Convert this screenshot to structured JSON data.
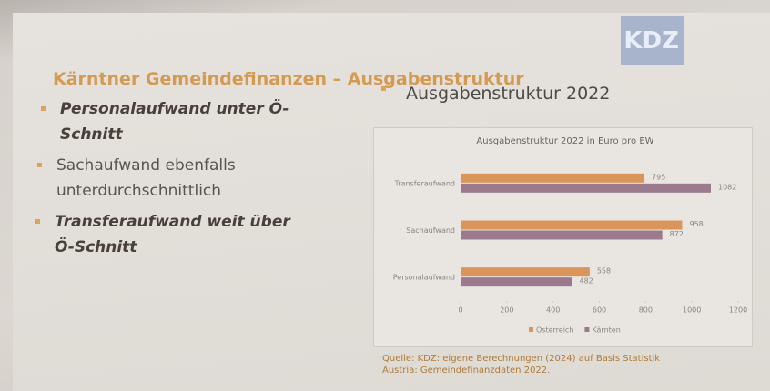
{
  "slide": {
    "title": "Kärntner Gemeindefinanzen – Ausgabenstruktur",
    "logo": "KDZ",
    "bullets": [
      "Personalaufwand unter Ö-Schnitt",
      "Sachaufwand ebenfalls unterdurchschnittlich",
      "Transferaufwand weit über Ö-Schnitt"
    ],
    "right_heading": "Ausgabenstruktur 2022",
    "source": "Quelle: KDZ: eigene Berechnungen (2024) auf Basis Statistik Austria: Gemeindefinanzdaten 2022."
  },
  "chart_data": {
    "type": "hbar",
    "title": "Ausgabenstruktur 2022 in Euro pro EW",
    "categories": [
      "Transferaufwand",
      "Sachaufwand",
      "Personalaufwand"
    ],
    "series": [
      {
        "name": "Österreich",
        "color": "#d9955a",
        "values": [
          795,
          958,
          558
        ]
      },
      {
        "name": "Kärnten",
        "color": "#9a7a8c",
        "values": [
          1082,
          872,
          482
        ]
      }
    ],
    "xlim": [
      0,
      1200
    ],
    "xticks": [
      0,
      200,
      400,
      600,
      800,
      1000,
      1200
    ],
    "legend": "bottom"
  }
}
